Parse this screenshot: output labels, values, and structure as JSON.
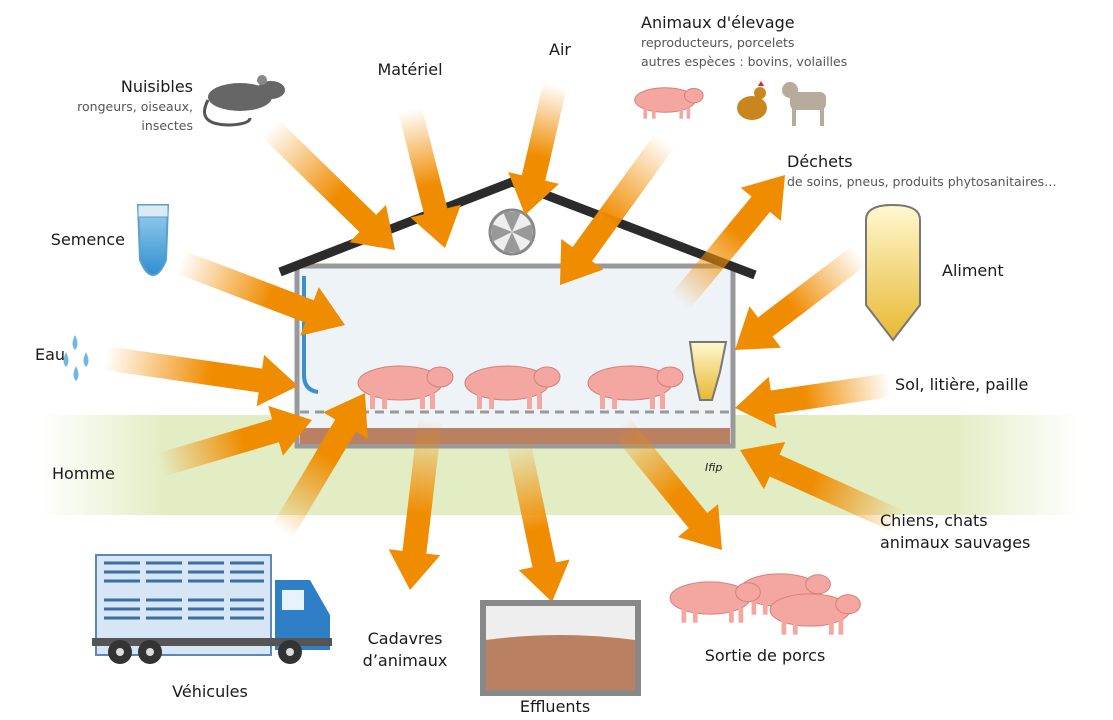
{
  "nodes": [
    {
      "lines": [
        "Nuisibles"
      ],
      "details": [
        "rongeurs, oiseaux,",
        "insectes"
      ]
    },
    {
      "lines": [
        "Matériel"
      ]
    },
    {
      "lines": [
        "Air"
      ]
    },
    {
      "lines": [
        "Animaux d'élevage"
      ],
      "details": [
        "reproducteurs, porcelets",
        "autres espèces : bovins, volailles"
      ]
    },
    {
      "lines": [
        "Déchets"
      ],
      "details": [
        "de soins, pneus, produits phytosanitaires…"
      ]
    },
    {
      "lines": [
        "Semence"
      ]
    },
    {
      "lines": [
        "Aliment"
      ]
    },
    {
      "lines": [
        "Eau"
      ]
    },
    {
      "lines": [
        "Sol, litière, paille"
      ]
    },
    {
      "lines": [
        "Homme"
      ]
    },
    {
      "lines": [
        "Chiens, chats",
        "animaux sauvages"
      ]
    },
    {
      "lines": [
        "Véhicules"
      ]
    },
    {
      "lines": [
        "Cadavres",
        "d’animaux"
      ]
    },
    {
      "lines": [
        "Effluents"
      ]
    },
    {
      "lines": [
        "Sortie de porcs"
      ]
    }
  ],
  "credit": "Ifip"
}
